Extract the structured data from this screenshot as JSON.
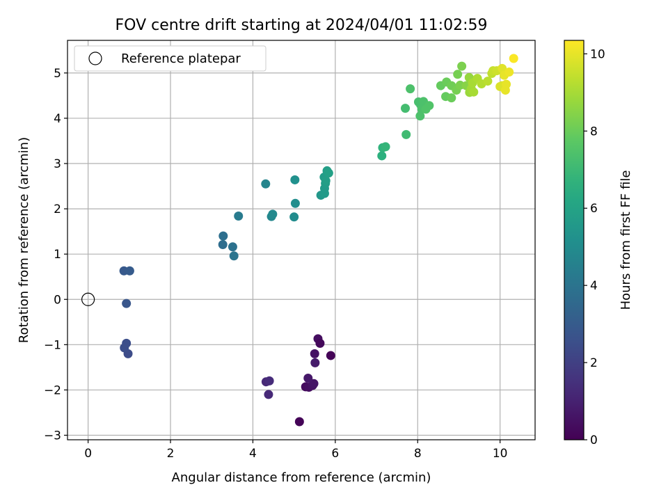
{
  "chart_data": {
    "type": "scatter",
    "title": "FOV centre drift starting at 2024/04/01 11:02:59",
    "xlabel": "Angular distance from reference (arcmin)",
    "ylabel": "Rotation from reference (arcmin)",
    "xlim": [
      -0.5,
      10.85
    ],
    "ylim": [
      -3.1,
      5.72
    ],
    "xticks": [
      0,
      2,
      4,
      6,
      8,
      10
    ],
    "yticks": [
      -3,
      -2,
      -1,
      0,
      1,
      2,
      3,
      4,
      5
    ],
    "grid": true,
    "legend": {
      "placement": "top-left",
      "entries": [
        "Reference platepar"
      ]
    },
    "reference_point": {
      "x": 0,
      "y": 0,
      "marker": "open-circle"
    },
    "colorbar": {
      "label": "Hours from first FF file",
      "colormap": "viridis",
      "range": [
        0,
        10.35
      ],
      "ticks": [
        0,
        2,
        4,
        6,
        8,
        10
      ]
    },
    "points": [
      {
        "x": 5.13,
        "y": -2.7,
        "c": 0.1
      },
      {
        "x": 5.28,
        "y": -1.93,
        "c": 0.3
      },
      {
        "x": 5.36,
        "y": -1.94,
        "c": 0.4
      },
      {
        "x": 5.45,
        "y": -1.9,
        "c": 0.5
      },
      {
        "x": 5.48,
        "y": -1.86,
        "c": 0.6
      },
      {
        "x": 5.34,
        "y": -1.74,
        "c": 0.7
      },
      {
        "x": 5.51,
        "y": -1.4,
        "c": 0.8
      },
      {
        "x": 5.5,
        "y": -1.2,
        "c": 0.5
      },
      {
        "x": 5.58,
        "y": -0.87,
        "c": 0.4
      },
      {
        "x": 5.63,
        "y": -0.97,
        "c": 0.2
      },
      {
        "x": 5.89,
        "y": -1.24,
        "c": 0.1
      },
      {
        "x": 4.38,
        "y": -2.1,
        "c": 1.2
      },
      {
        "x": 4.32,
        "y": -1.82,
        "c": 1.2
      },
      {
        "x": 4.4,
        "y": -1.8,
        "c": 1.3
      },
      {
        "x": 0.97,
        "y": -1.2,
        "c": 2.4
      },
      {
        "x": 0.88,
        "y": -1.07,
        "c": 2.5
      },
      {
        "x": 0.93,
        "y": -0.97,
        "c": 2.5
      },
      {
        "x": 0.93,
        "y": -0.09,
        "c": 2.8
      },
      {
        "x": 0.87,
        "y": 0.63,
        "c": 2.9
      },
      {
        "x": 1.01,
        "y": 0.63,
        "c": 3.0
      },
      {
        "x": 3.27,
        "y": 1.21,
        "c": 3.7
      },
      {
        "x": 3.28,
        "y": 1.4,
        "c": 3.8
      },
      {
        "x": 3.51,
        "y": 1.16,
        "c": 3.9
      },
      {
        "x": 3.54,
        "y": 0.96,
        "c": 4.0
      },
      {
        "x": 3.65,
        "y": 1.84,
        "c": 4.3
      },
      {
        "x": 4.31,
        "y": 2.55,
        "c": 4.7
      },
      {
        "x": 4.45,
        "y": 1.83,
        "c": 4.8
      },
      {
        "x": 4.48,
        "y": 1.88,
        "c": 4.9
      },
      {
        "x": 5.0,
        "y": 1.82,
        "c": 5.0
      },
      {
        "x": 5.03,
        "y": 2.12,
        "c": 5.1
      },
      {
        "x": 5.02,
        "y": 2.64,
        "c": 5.2
      },
      {
        "x": 5.65,
        "y": 2.3,
        "c": 5.5
      },
      {
        "x": 5.74,
        "y": 2.34,
        "c": 5.6
      },
      {
        "x": 5.74,
        "y": 2.45,
        "c": 5.6
      },
      {
        "x": 5.76,
        "y": 2.56,
        "c": 5.7
      },
      {
        "x": 5.73,
        "y": 2.7,
        "c": 5.7
      },
      {
        "x": 5.77,
        "y": 2.62,
        "c": 5.8
      },
      {
        "x": 5.8,
        "y": 2.84,
        "c": 5.8
      },
      {
        "x": 5.84,
        "y": 2.79,
        "c": 5.9
      },
      {
        "x": 7.13,
        "y": 3.17,
        "c": 6.6
      },
      {
        "x": 7.15,
        "y": 3.35,
        "c": 6.7
      },
      {
        "x": 7.22,
        "y": 3.37,
        "c": 6.8
      },
      {
        "x": 7.72,
        "y": 3.64,
        "c": 7.1
      },
      {
        "x": 7.7,
        "y": 4.22,
        "c": 7.2
      },
      {
        "x": 7.82,
        "y": 4.65,
        "c": 7.4
      },
      {
        "x": 8.02,
        "y": 4.36,
        "c": 7.3
      },
      {
        "x": 8.07,
        "y": 4.3,
        "c": 7.3
      },
      {
        "x": 8.14,
        "y": 4.37,
        "c": 7.4
      },
      {
        "x": 8.1,
        "y": 4.2,
        "c": 7.4
      },
      {
        "x": 8.06,
        "y": 4.05,
        "c": 7.4
      },
      {
        "x": 8.2,
        "y": 4.2,
        "c": 7.5
      },
      {
        "x": 8.28,
        "y": 4.28,
        "c": 7.5
      },
      {
        "x": 8.56,
        "y": 4.72,
        "c": 7.9
      },
      {
        "x": 8.68,
        "y": 4.48,
        "c": 7.9
      },
      {
        "x": 8.7,
        "y": 4.8,
        "c": 8.0
      },
      {
        "x": 8.82,
        "y": 4.45,
        "c": 8.0
      },
      {
        "x": 8.82,
        "y": 4.72,
        "c": 8.1
      },
      {
        "x": 8.94,
        "y": 4.62,
        "c": 8.2
      },
      {
        "x": 8.97,
        "y": 4.97,
        "c": 8.2
      },
      {
        "x": 9.03,
        "y": 4.73,
        "c": 8.3
      },
      {
        "x": 9.07,
        "y": 5.15,
        "c": 8.3
      },
      {
        "x": 9.18,
        "y": 4.72,
        "c": 8.5
      },
      {
        "x": 9.25,
        "y": 4.9,
        "c": 8.7
      },
      {
        "x": 9.26,
        "y": 4.57,
        "c": 8.8
      },
      {
        "x": 9.3,
        "y": 4.65,
        "c": 8.9
      },
      {
        "x": 9.33,
        "y": 4.78,
        "c": 9.0
      },
      {
        "x": 9.36,
        "y": 4.58,
        "c": 9.0
      },
      {
        "x": 9.45,
        "y": 4.88,
        "c": 9.1
      },
      {
        "x": 9.55,
        "y": 4.76,
        "c": 9.2
      },
      {
        "x": 9.7,
        "y": 4.82,
        "c": 9.3
      },
      {
        "x": 9.8,
        "y": 4.99,
        "c": 9.4
      },
      {
        "x": 9.83,
        "y": 5.05,
        "c": 9.5
      },
      {
        "x": 9.92,
        "y": 5.05,
        "c": 9.6
      },
      {
        "x": 10.0,
        "y": 4.7,
        "c": 9.8
      },
      {
        "x": 10.05,
        "y": 4.72,
        "c": 9.8
      },
      {
        "x": 10.05,
        "y": 5.1,
        "c": 9.9
      },
      {
        "x": 10.1,
        "y": 4.95,
        "c": 10.0
      },
      {
        "x": 10.13,
        "y": 4.62,
        "c": 10.0
      },
      {
        "x": 10.15,
        "y": 4.75,
        "c": 10.0
      },
      {
        "x": 10.22,
        "y": 5.02,
        "c": 10.1
      },
      {
        "x": 10.33,
        "y": 5.32,
        "c": 10.3
      }
    ]
  },
  "colors": {
    "axis": "#000000",
    "grid": "#b0b0b0",
    "background": "#ffffff"
  }
}
